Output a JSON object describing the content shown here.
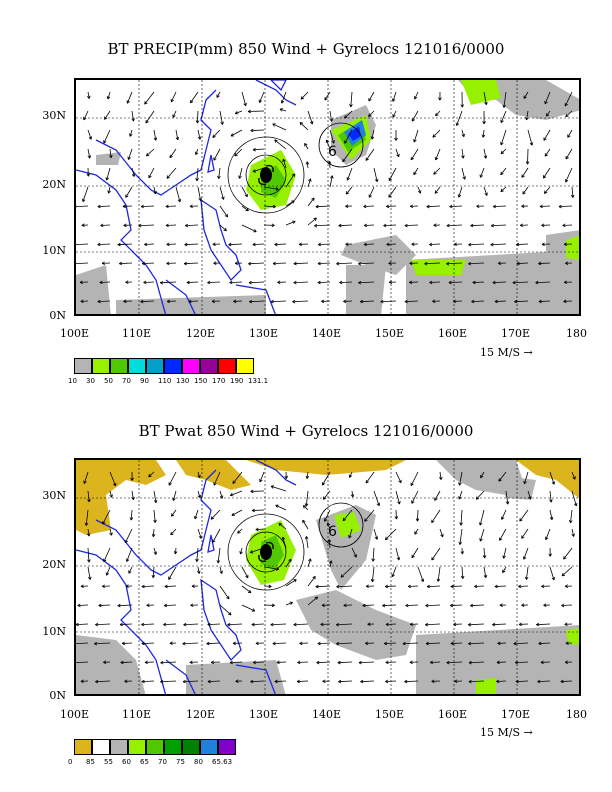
{
  "panel1": {
    "title": "BT PRECIP(mm) 850 Wind + Gyrelocs 121016/0000",
    "x_ticks": [
      "100E",
      "110E",
      "120E",
      "130E",
      "140E",
      "150E",
      "160E",
      "170E",
      "180"
    ],
    "y_ticks": [
      "30N",
      "20N",
      "10N",
      "0N"
    ],
    "ref_vector": "15 M/S",
    "colorbar_colors": [
      "#b4b4b4",
      "#96f000",
      "#50c800",
      "#00dcdc",
      "#00a0c8",
      "#0028ff",
      "#ff00ff",
      "#960096",
      "#ff0000",
      "#ffff00"
    ],
    "colorbar_labels": [
      "10",
      "30",
      "50",
      "70",
      "90",
      "110",
      "130",
      "150",
      "170",
      "190",
      "131.1"
    ]
  },
  "panel2": {
    "title": "BT Pwat 850 Wind + Gyrelocs 121016/0000",
    "x_ticks": [
      "100E",
      "110E",
      "120E",
      "130E",
      "140E",
      "150E",
      "160E",
      "170E",
      "180"
    ],
    "y_ticks": [
      "30N",
      "20N",
      "10N",
      "0N"
    ],
    "ref_vector": "15 M/S",
    "colorbar_colors": [
      "#dcb41e",
      "#ffffff",
      "#b4b4b4",
      "#96f000",
      "#50c800",
      "#00a000",
      "#008200",
      "#1e82dc",
      "#8200c8"
    ],
    "colorbar_labels": [
      "0",
      "85",
      "55",
      "60",
      "65",
      "70",
      "75",
      "80",
      "65.63"
    ]
  }
}
